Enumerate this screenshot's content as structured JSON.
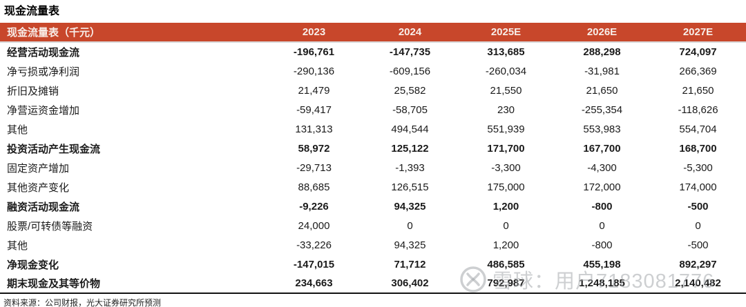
{
  "page_title": "现金流量表",
  "table": {
    "header": {
      "label": "现金流量表（千元）",
      "years": [
        "2023",
        "2024",
        "2025E",
        "2026E",
        "2027E"
      ]
    },
    "rows": [
      {
        "label": "经营活动现金流",
        "bold": true,
        "values": [
          "-196,761",
          "-147,735",
          "313,685",
          "288,298",
          "724,097"
        ]
      },
      {
        "label": "净亏损或净利润",
        "bold": false,
        "values": [
          "-290,136",
          "-609,156",
          "-260,034",
          "-31,981",
          "266,369"
        ]
      },
      {
        "label": "折旧及摊销",
        "bold": false,
        "values": [
          "21,479",
          "25,582",
          "21,550",
          "21,650",
          "21,650"
        ]
      },
      {
        "label": "净营运资金增加",
        "bold": false,
        "values": [
          "-59,417",
          "-58,705",
          "230",
          "-255,354",
          "-118,626"
        ]
      },
      {
        "label": "其他",
        "bold": false,
        "values": [
          "131,313",
          "494,544",
          "551,939",
          "553,983",
          "554,704"
        ]
      },
      {
        "label": "投资活动产生现金流",
        "bold": true,
        "values": [
          "58,972",
          "125,122",
          "171,700",
          "167,700",
          "168,700"
        ]
      },
      {
        "label": "固定资产增加",
        "bold": false,
        "values": [
          "-29,713",
          "-1,393",
          "-3,300",
          "-4,300",
          "-5,300"
        ]
      },
      {
        "label": "其他资产变化",
        "bold": false,
        "values": [
          "88,685",
          "126,515",
          "175,000",
          "172,000",
          "174,000"
        ]
      },
      {
        "label": "融资活动现金流",
        "bold": true,
        "values": [
          "-9,226",
          "94,325",
          "1,200",
          "-800",
          "-500"
        ]
      },
      {
        "label": "股票/可转债等融资",
        "bold": false,
        "values": [
          "24,000",
          "0",
          "0",
          "0",
          "0"
        ]
      },
      {
        "label": "其他",
        "bold": false,
        "values": [
          "-33,226",
          "94,325",
          "1,200",
          "-800",
          "-500"
        ]
      },
      {
        "label": "净现金变化",
        "bold": true,
        "values": [
          "-147,015",
          "71,712",
          "486,585",
          "455,198",
          "892,297"
        ]
      },
      {
        "label": "期末现金及其等价物",
        "bold": true,
        "values": [
          "234,663",
          "306,402",
          "792,987",
          "1,248,185",
          "2,140,482"
        ]
      }
    ]
  },
  "footer": {
    "source": "资料来源：公司财报，光大证券研究所预测"
  },
  "watermark": {
    "text": "雪球：用户7183081776",
    "logo": "xueqiu-snowball-icon"
  },
  "colors": {
    "header_bg": "#C8472B",
    "header_text": "#F8EEE9",
    "body_text": "#1A1A1A",
    "watermark_gray": "#A4A8AB"
  }
}
